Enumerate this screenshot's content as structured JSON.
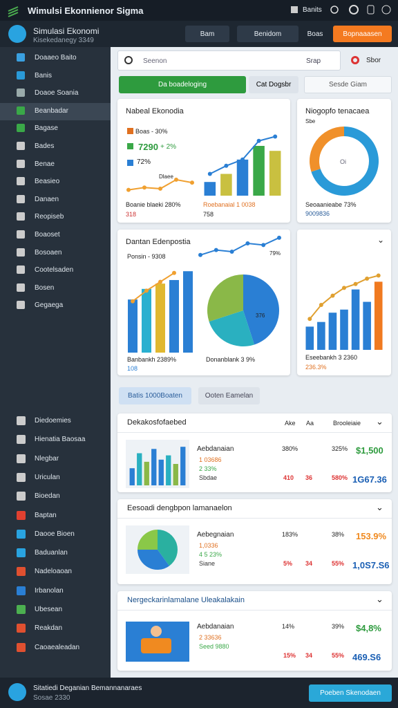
{
  "topbar": {
    "title": "Wimulsi Ekonnienor Sigma",
    "menu": "Banits"
  },
  "header": {
    "name": "Simulasi Ekonomi",
    "sub": "Kisekedanegy 3349",
    "buttons": [
      "Bam",
      "Benidom",
      "Boas"
    ],
    "cta": "Bopnaaasen"
  },
  "sidebar": {
    "items": [
      "Doaaeo Baito",
      "Banis",
      "Doaoe Soania",
      "Beanbadar",
      "Bagase",
      "Bades",
      "Benae",
      "Beasieo",
      "Danaen",
      "Reopiseb",
      "Boaoset",
      "Bosoaen",
      "Cootelsaden",
      "Bosen",
      "Gegaega"
    ],
    "items2": [
      "Diedoemies",
      "Hienatia Baosaa",
      "Nlegbar",
      "Uriculan",
      "Bioedan",
      "Baptan",
      "Daooe Bioen",
      "Baduanlan",
      "Nadeloaoan",
      "Irbanolan",
      "Ubesean",
      "Reakdan",
      "Caoaealeadan"
    ]
  },
  "search": {
    "placeholder": "Seenon",
    "filter": "Srap",
    "action": "Sbor"
  },
  "tabs": [
    "Da boadeloging",
    "Cat Dogsbr",
    "Sesde Giam"
  ],
  "cards": [
    {
      "title": "Nabeal Ekonodia",
      "texts": [
        "Boas - 30%",
        "7290",
        "+ 2%",
        "72%",
        "Dlaee",
        "Boanie blaeki 280%",
        "318",
        "Roebanaial 1 0038",
        "758"
      ],
      "charts": [
        {
          "type": "line",
          "values": [
            20,
            28,
            24,
            55,
            45
          ],
          "ylim": [
            0,
            100
          ],
          "color": "#f0a030"
        },
        {
          "type": "bar",
          "values": [
            22,
            35,
            58,
            80,
            72
          ],
          "colors": [
            "#2a7fd4",
            "#c9c040",
            "#2a7fd4",
            "#3aa848",
            "#c9c040"
          ],
          "line": [
            35,
            48,
            58,
            88,
            95
          ],
          "line_color": "#2a7fd4",
          "ylim": [
            0,
            100
          ]
        }
      ]
    },
    {
      "title": "Niogopfo tenacaea",
      "texts": [
        "Sbe",
        "Oi",
        "Seoaanieabe 73%",
        "9009836"
      ],
      "charts": [
        {
          "type": "donut",
          "values": [
            70,
            30
          ],
          "colors": [
            "#2a9ad8",
            "#f0902a"
          ]
        }
      ]
    },
    {
      "title": "Dantan Edenpostia",
      "texts": [
        "Ponsin - 9308",
        "79%",
        "376",
        "Banbankh 2389%",
        "108",
        "Donanblank 3 9%"
      ],
      "charts": [
        {
          "type": "bar",
          "values": [
            60,
            72,
            78,
            82,
            92
          ],
          "colors": [
            "#2a7fd4",
            "#2ab0d0",
            "#e0b830",
            "#2a7fd4",
            "#2a7fd4"
          ],
          "line": [
            58,
            70,
            80,
            90
          ],
          "line_color": "#f0a030",
          "ylim": [
            0,
            100
          ]
        },
        {
          "type": "pie",
          "values": [
            45,
            25,
            30
          ],
          "colors": [
            "#2a7fd4",
            "#2ab0c0",
            "#8ab848"
          ]
        },
        {
          "type": "line",
          "values": [
            40,
            55,
            50,
            75,
            70,
            92
          ],
          "ylim": [
            0,
            100
          ],
          "color": "#2a7fd4"
        }
      ]
    },
    {
      "title": "",
      "texts": [
        "Eseebankh 3 2360",
        "236.3%"
      ],
      "charts": [
        {
          "type": "bar",
          "values": [
            30,
            36,
            48,
            52,
            78,
            62,
            88
          ],
          "colors": [
            "#2a7fd4",
            "#2a7fd4",
            "#2a7fd4",
            "#2a7fd4",
            "#2a7fd4",
            "#2a7fd4",
            "#f07a20"
          ],
          "line": [
            40,
            58,
            70,
            80,
            85,
            92,
            96
          ],
          "line_color": "#e0a030",
          "ylim": [
            0,
            100
          ]
        }
      ]
    }
  ],
  "pills": [
    "Batis 1000Boaten",
    "Ooten Eamelan"
  ],
  "lists": [
    {
      "title": "Dekakosfofaebed",
      "columns": [
        "Ake",
        "Aa",
        "Brooleiaie"
      ],
      "name": "Aebdanaian",
      "lines": [
        "1 03686",
        "2 33%",
        "Sbdae"
      ],
      "row1": [
        "380%",
        "325%",
        "$1,500"
      ],
      "row2": [
        "410",
        "36",
        "580%",
        "1G67.36"
      ],
      "chart": {
        "type": "bar",
        "values": [
          40,
          75,
          55,
          85,
          60,
          70,
          50,
          90
        ],
        "colors": [
          "#2a7fd4",
          "#2ab0c0",
          "#8ab848",
          "#2a7fd4"
        ],
        "ylim": [
          0,
          100
        ]
      }
    },
    {
      "title": "Eesoadi dengbpon lamanaelon",
      "name": "Aebegnaian",
      "lines": [
        "1,0336",
        "4 5 23%",
        "Siane"
      ],
      "row1": [
        "183%",
        "38%",
        "153.9%"
      ],
      "row2": [
        "5%",
        "34",
        "55%",
        "1,0S7.S6"
      ],
      "chart": {
        "type": "pie",
        "values": [
          40,
          35,
          25
        ],
        "colors": [
          "#2ab0a0",
          "#2a7fd4",
          "#8ac848"
        ]
      }
    },
    {
      "title": "Nergeckarinlamalane Uleakalakain",
      "name": "Aebdanaian",
      "lines": [
        "2 33636",
        "Seed 9880"
      ],
      "row1": [
        "14%",
        "39%",
        "$4,8%"
      ],
      "row2": [
        "15%",
        "34",
        "55%",
        "469.S6"
      ]
    }
  ],
  "footer": {
    "title": "Sitatiedi Deganian Bemannanaraes",
    "sub": "Sosae 2330",
    "button": "Poeben Skenodaen"
  }
}
